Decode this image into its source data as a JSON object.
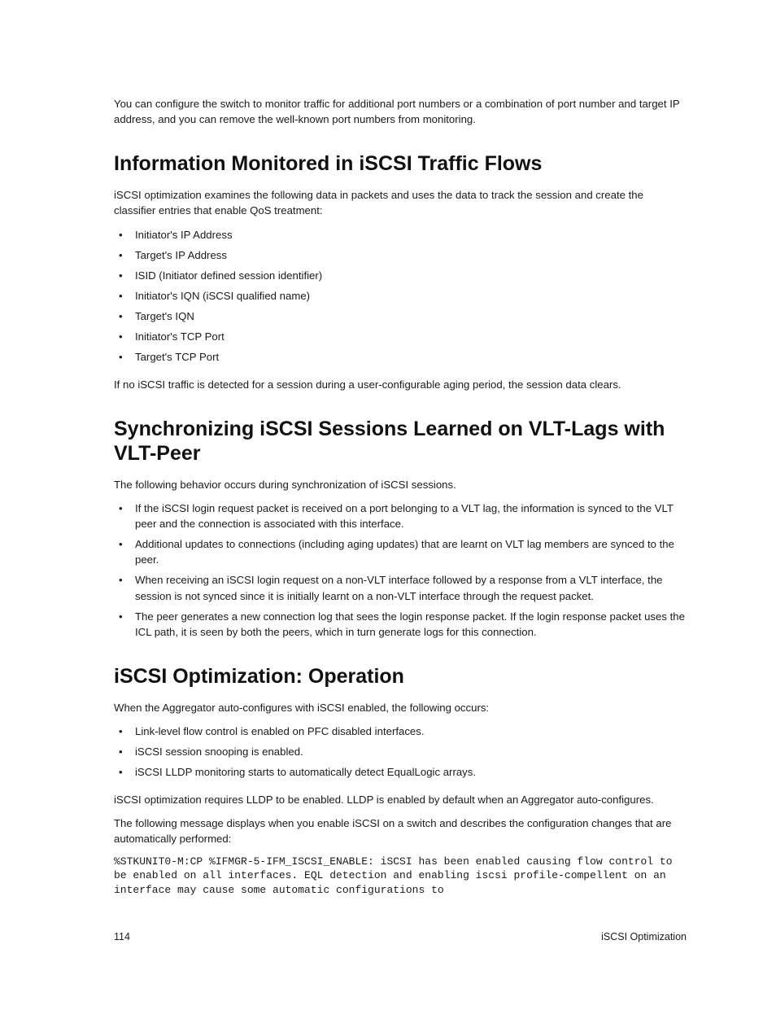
{
  "intro_paragraph": "You can configure the switch to monitor traffic for additional port numbers or a combination of port number and target IP address, and you can remove the well-known port numbers from monitoring.",
  "section1": {
    "heading": "Information Monitored in iSCSI Traffic Flows",
    "paragraph1": "iSCSI optimization examines the following data in packets and uses the data to track the session and create the classifier entries that enable QoS treatment:",
    "bullets": [
      "Initiator's IP Address",
      "Target's IP Address",
      "ISID (Initiator defined session identifier)",
      "Initiator's IQN (iSCSI qualified name)",
      "Target's IQN",
      "Initiator's TCP Port",
      "Target's TCP Port"
    ],
    "paragraph2": "If no iSCSI traffic is detected for a session during a user-configurable aging period, the session data clears."
  },
  "section2": {
    "heading": "Synchronizing iSCSI Sessions Learned on VLT-Lags with VLT-Peer",
    "paragraph1": "The following behavior occurs during synchronization of iSCSI sessions.",
    "bullets": [
      "If the iSCSI login request packet is received on a port belonging to a VLT lag, the information is synced to the VLT peer and the connection is associated with this interface.",
      "Additional updates to connections (including aging updates) that are learnt on VLT lag members are synced to the peer.",
      "When receiving an iSCSI login request on a non-VLT interface followed by a response from a VLT interface, the session is not synced since it is initially learnt on a non-VLT interface through the request packet.",
      "The peer generates a new connection log that sees the login response packet. If the login response packet uses the ICL path, it is seen by both the peers, which in turn generate logs for this connection."
    ]
  },
  "section3": {
    "heading": "iSCSI Optimization: Operation",
    "paragraph1": "When the Aggregator auto-configures with iSCSI enabled, the following occurs:",
    "bullets": [
      "Link-level flow control is enabled on PFC disabled interfaces.",
      "iSCSI session snooping is enabled.",
      "iSCSI LLDP monitoring starts to automatically detect EqualLogic arrays."
    ],
    "paragraph2": "iSCSI optimization requires LLDP to be enabled. LLDP is enabled by default when an Aggregator auto-configures.",
    "paragraph3": "The following message displays when you enable iSCSI on a switch and describes the configuration changes that are automatically performed:",
    "code": "%STKUNIT0-M:CP %IFMGR-5-IFM_ISCSI_ENABLE: iSCSI has been enabled causing flow control to be enabled on all interfaces. EQL detection and enabling iscsi profile-compellent on an interface may cause some automatic configurations to"
  },
  "footer": {
    "page_number": "114",
    "section_name": "iSCSI Optimization"
  }
}
